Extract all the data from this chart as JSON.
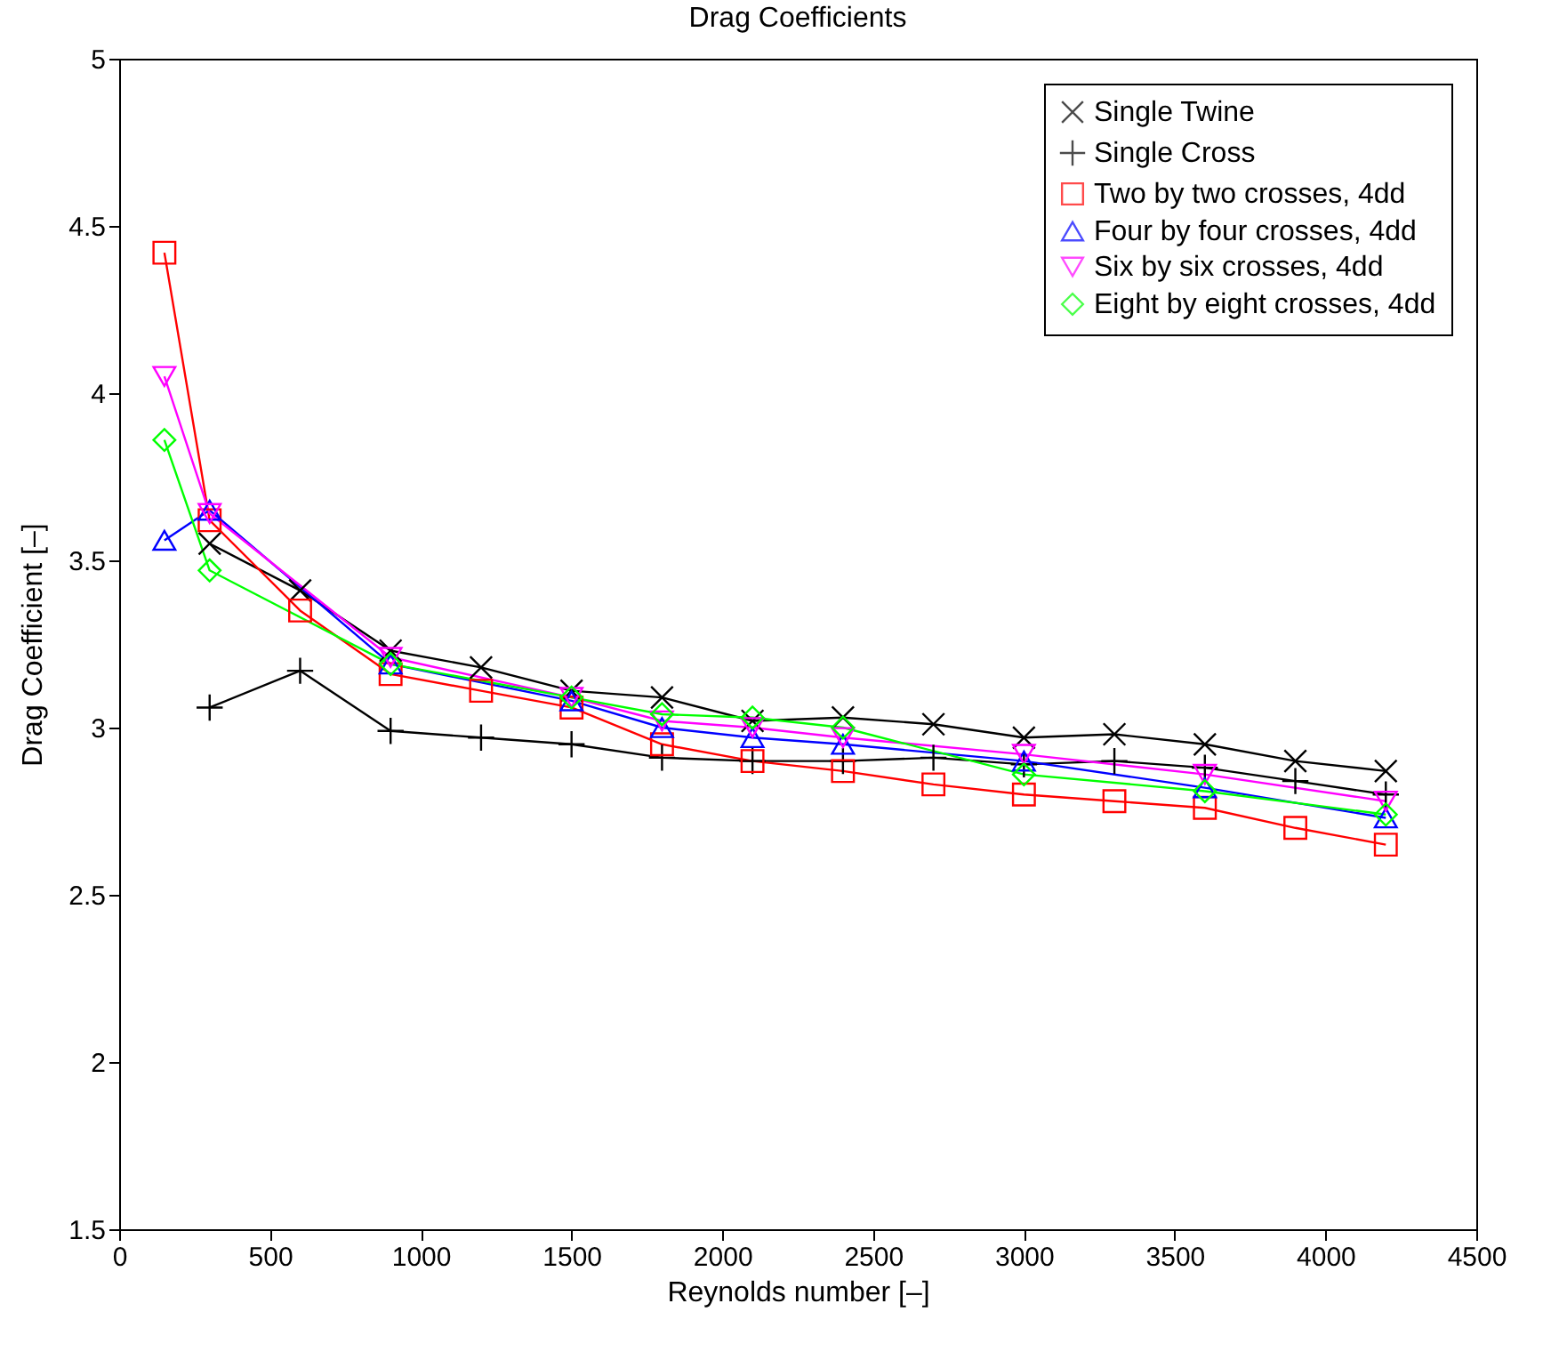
{
  "chart_data": {
    "type": "line",
    "title": "Drag Coefficients",
    "xlabel": "Reynolds number [–]",
    "ylabel": "Drag Coefficient [–]",
    "xlim": [
      0,
      4500
    ],
    "xticks": [
      0,
      500,
      1000,
      1500,
      2000,
      2500,
      3000,
      3500,
      4000,
      4500
    ],
    "ylim": [
      1.5,
      5
    ],
    "yticks": [
      1.5,
      2,
      2.5,
      3,
      3.5,
      4,
      4.5,
      5
    ],
    "grid": false,
    "legend": "top right",
    "line_style": "solid",
    "series": [
      {
        "name": "Single Twine",
        "color": "#000000",
        "marker": "cross",
        "x": [
          300,
          600,
          900,
          1200,
          1500,
          1800,
          2100,
          2400,
          2700,
          3000,
          3300,
          3600,
          3900,
          4200
        ],
        "values": [
          3.55,
          3.41,
          3.23,
          3.18,
          3.11,
          3.09,
          3.02,
          3.03,
          3.01,
          2.97,
          2.98,
          2.95,
          2.9,
          2.87
        ]
      },
      {
        "name": "Single Cross",
        "color": "#000000",
        "marker": "plus",
        "x": [
          300,
          600,
          900,
          1200,
          1500,
          1800,
          2100,
          2400,
          2700,
          3000,
          3300,
          3600,
          3900,
          4200
        ],
        "values": [
          3.06,
          3.17,
          2.99,
          2.97,
          2.95,
          2.91,
          2.9,
          2.9,
          2.91,
          2.89,
          2.9,
          2.88,
          2.84,
          2.8
        ]
      },
      {
        "name": "Two by two crosses, 4dd",
        "color": "#ff0000",
        "marker": "square",
        "x": [
          150,
          300,
          600,
          900,
          1200,
          1500,
          1800,
          2100,
          2400,
          2700,
          3000,
          3300,
          3600,
          3900,
          4200
        ],
        "values": [
          4.42,
          3.62,
          3.35,
          3.16,
          3.11,
          3.06,
          2.95,
          2.9,
          2.87,
          2.83,
          2.8,
          2.78,
          2.76,
          2.7,
          2.65
        ]
      },
      {
        "name": "Four by four crosses, 4dd",
        "color": "#0000ff",
        "marker": "triangle",
        "x": [
          150,
          300,
          900,
          1500,
          1800,
          2100,
          2400,
          3000,
          3600,
          4200
        ],
        "values": [
          3.56,
          3.65,
          3.19,
          3.08,
          3.0,
          2.97,
          2.95,
          2.9,
          2.82,
          2.73
        ]
      },
      {
        "name": "Six by six crosses, 4dd",
        "color": "#ff00ff",
        "marker": "triangle-down",
        "x": [
          150,
          300,
          900,
          1500,
          1800,
          2100,
          2400,
          3000,
          3600,
          4200
        ],
        "values": [
          4.05,
          3.64,
          3.21,
          3.09,
          3.02,
          3.0,
          2.97,
          2.92,
          2.86,
          2.78
        ]
      },
      {
        "name": "Eight by eight crosses, 4dd",
        "color": "#00ff00",
        "marker": "diamond",
        "x": [
          150,
          300,
          900,
          1500,
          1800,
          2100,
          2400,
          3000,
          3600,
          4200
        ],
        "values": [
          3.86,
          3.47,
          3.19,
          3.09,
          3.04,
          3.03,
          3.0,
          2.86,
          2.81,
          2.74
        ]
      }
    ]
  }
}
